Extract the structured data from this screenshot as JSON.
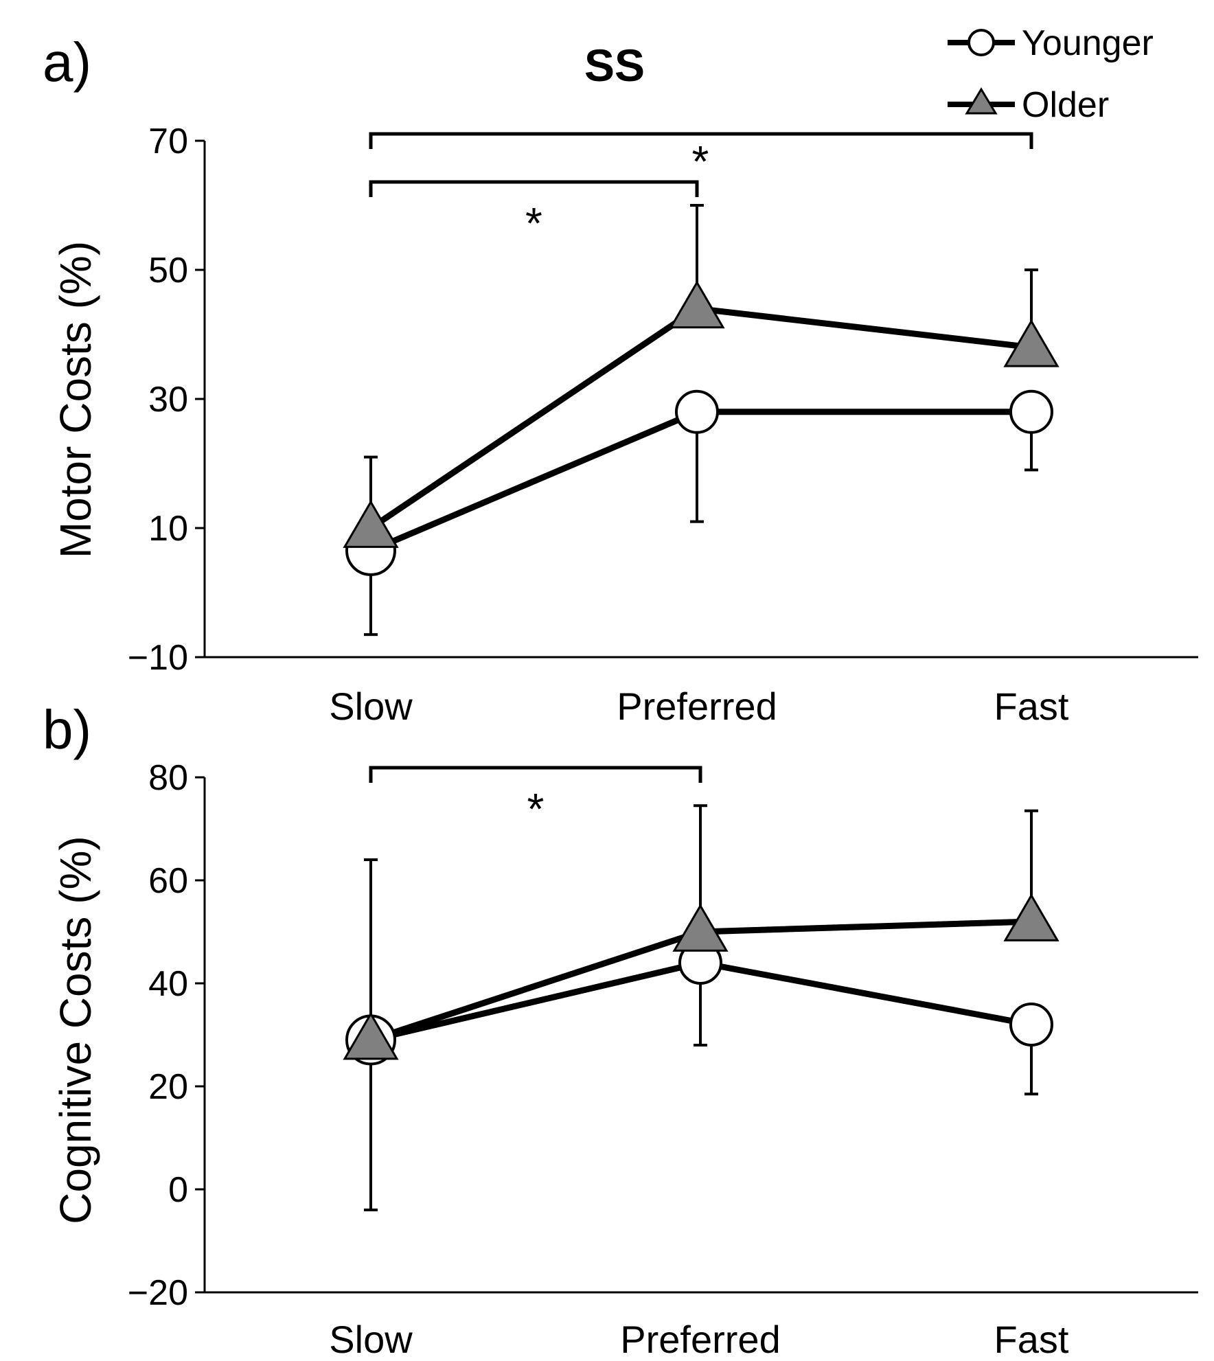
{
  "figure": {
    "title": "SS",
    "legend": [
      {
        "name": "Younger",
        "marker": "open-circle"
      },
      {
        "name": "Older",
        "marker": "gray-triangle"
      }
    ],
    "colors": {
      "line": "#000000",
      "younger_fill": "#ffffff",
      "older_fill": "#808080"
    }
  },
  "chart_data": [
    {
      "type": "line",
      "panel_label": "a)",
      "title": "SS",
      "xlabel": "",
      "ylabel": "Motor Costs (%)",
      "categories": [
        "Slow",
        "Preferred",
        "Fast"
      ],
      "ylim": [
        -10,
        70
      ],
      "yticks": [
        -10,
        10,
        30,
        50,
        70
      ],
      "ytick_labels": [
        "−10",
        "10",
        "30",
        "50",
        "70"
      ],
      "series": [
        {
          "name": "Younger",
          "values": [
            6.5,
            28,
            28
          ],
          "error": [
            13,
            17,
            9
          ],
          "error_direction": "down"
        },
        {
          "name": "Older",
          "values": [
            10,
            44,
            38
          ],
          "error": [
            11,
            16,
            12
          ],
          "error_direction": "up"
        }
      ],
      "significance": [
        {
          "from": "Slow",
          "to": "Preferred",
          "label": "*"
        },
        {
          "from": "Slow",
          "to": "Fast",
          "label": "*"
        }
      ]
    },
    {
      "type": "line",
      "panel_label": "b)",
      "xlabel": "",
      "ylabel": "Cognitive Costs (%)",
      "categories": [
        "Slow",
        "Preferred",
        "Fast"
      ],
      "ylim": [
        -20,
        80
      ],
      "yticks": [
        -20,
        0,
        20,
        40,
        60,
        80
      ],
      "ytick_labels": [
        "−20",
        "0",
        "20",
        "40",
        "60",
        "80"
      ],
      "series": [
        {
          "name": "Younger",
          "values": [
            29,
            44,
            32
          ],
          "error": [
            33,
            16,
            13.5
          ],
          "error_direction": "down"
        },
        {
          "name": "Older",
          "values": [
            29,
            50,
            52
          ],
          "error": [
            35,
            24.5,
            21.5
          ],
          "error_direction": "up"
        }
      ],
      "significance": [
        {
          "from": "Slow",
          "to": "Preferred",
          "label": "*"
        }
      ]
    }
  ]
}
